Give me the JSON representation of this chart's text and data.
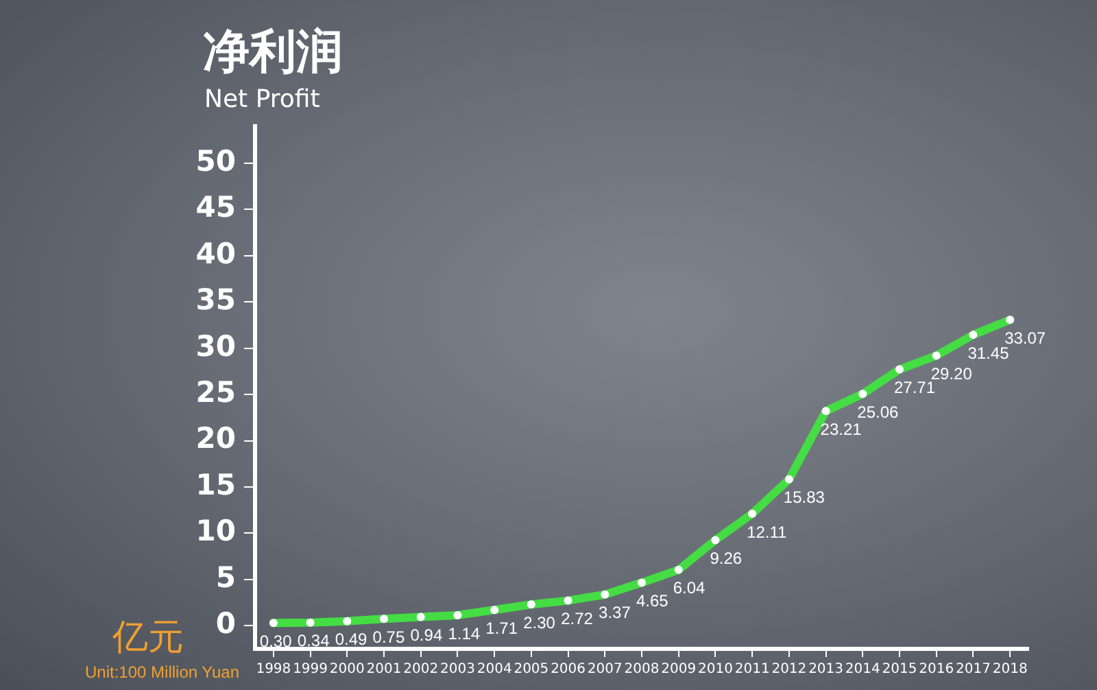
{
  "chart_data": {
    "type": "line",
    "title": "净利润",
    "subtitle": "Net Profit",
    "ylabel": "亿元",
    "annotations": [
      "Unit:100 Million Yuan"
    ],
    "categories": [
      "1998",
      "1999",
      "2000",
      "2001",
      "2002",
      "2003",
      "2004",
      "2005",
      "2006",
      "2007",
      "2008",
      "2009",
      "2010",
      "2011",
      "2012",
      "2013",
      "2014",
      "2015",
      "2016",
      "2017",
      "2018"
    ],
    "series": [
      {
        "color": "#44dd44",
        "values": [
          0.3,
          0.34,
          0.49,
          0.75,
          0.94,
          1.14,
          1.71,
          2.3,
          2.72,
          3.37,
          4.65,
          6.04,
          9.26,
          12.11,
          15.83,
          23.21,
          25.06,
          27.71,
          29.2,
          31.45,
          33.07
        ],
        "value_labels": [
          "0.30",
          "0.34",
          "0.49",
          "0.75",
          "0.94",
          "1.14",
          "1.71",
          "2.30",
          "2.72",
          "3.37",
          "4.65",
          "6.04",
          "9.26",
          "12.11",
          "15.83",
          "23.21",
          "25.06",
          "27.71",
          "29.20",
          "31.45",
          "33.07"
        ]
      }
    ],
    "ylim": [
      -2.5,
      54
    ],
    "yticks": [
      0,
      5,
      10,
      15,
      20,
      25,
      30,
      35,
      40,
      45,
      50
    ],
    "grid": false,
    "legend": false,
    "marker": "circle",
    "line_style": "solid"
  }
}
